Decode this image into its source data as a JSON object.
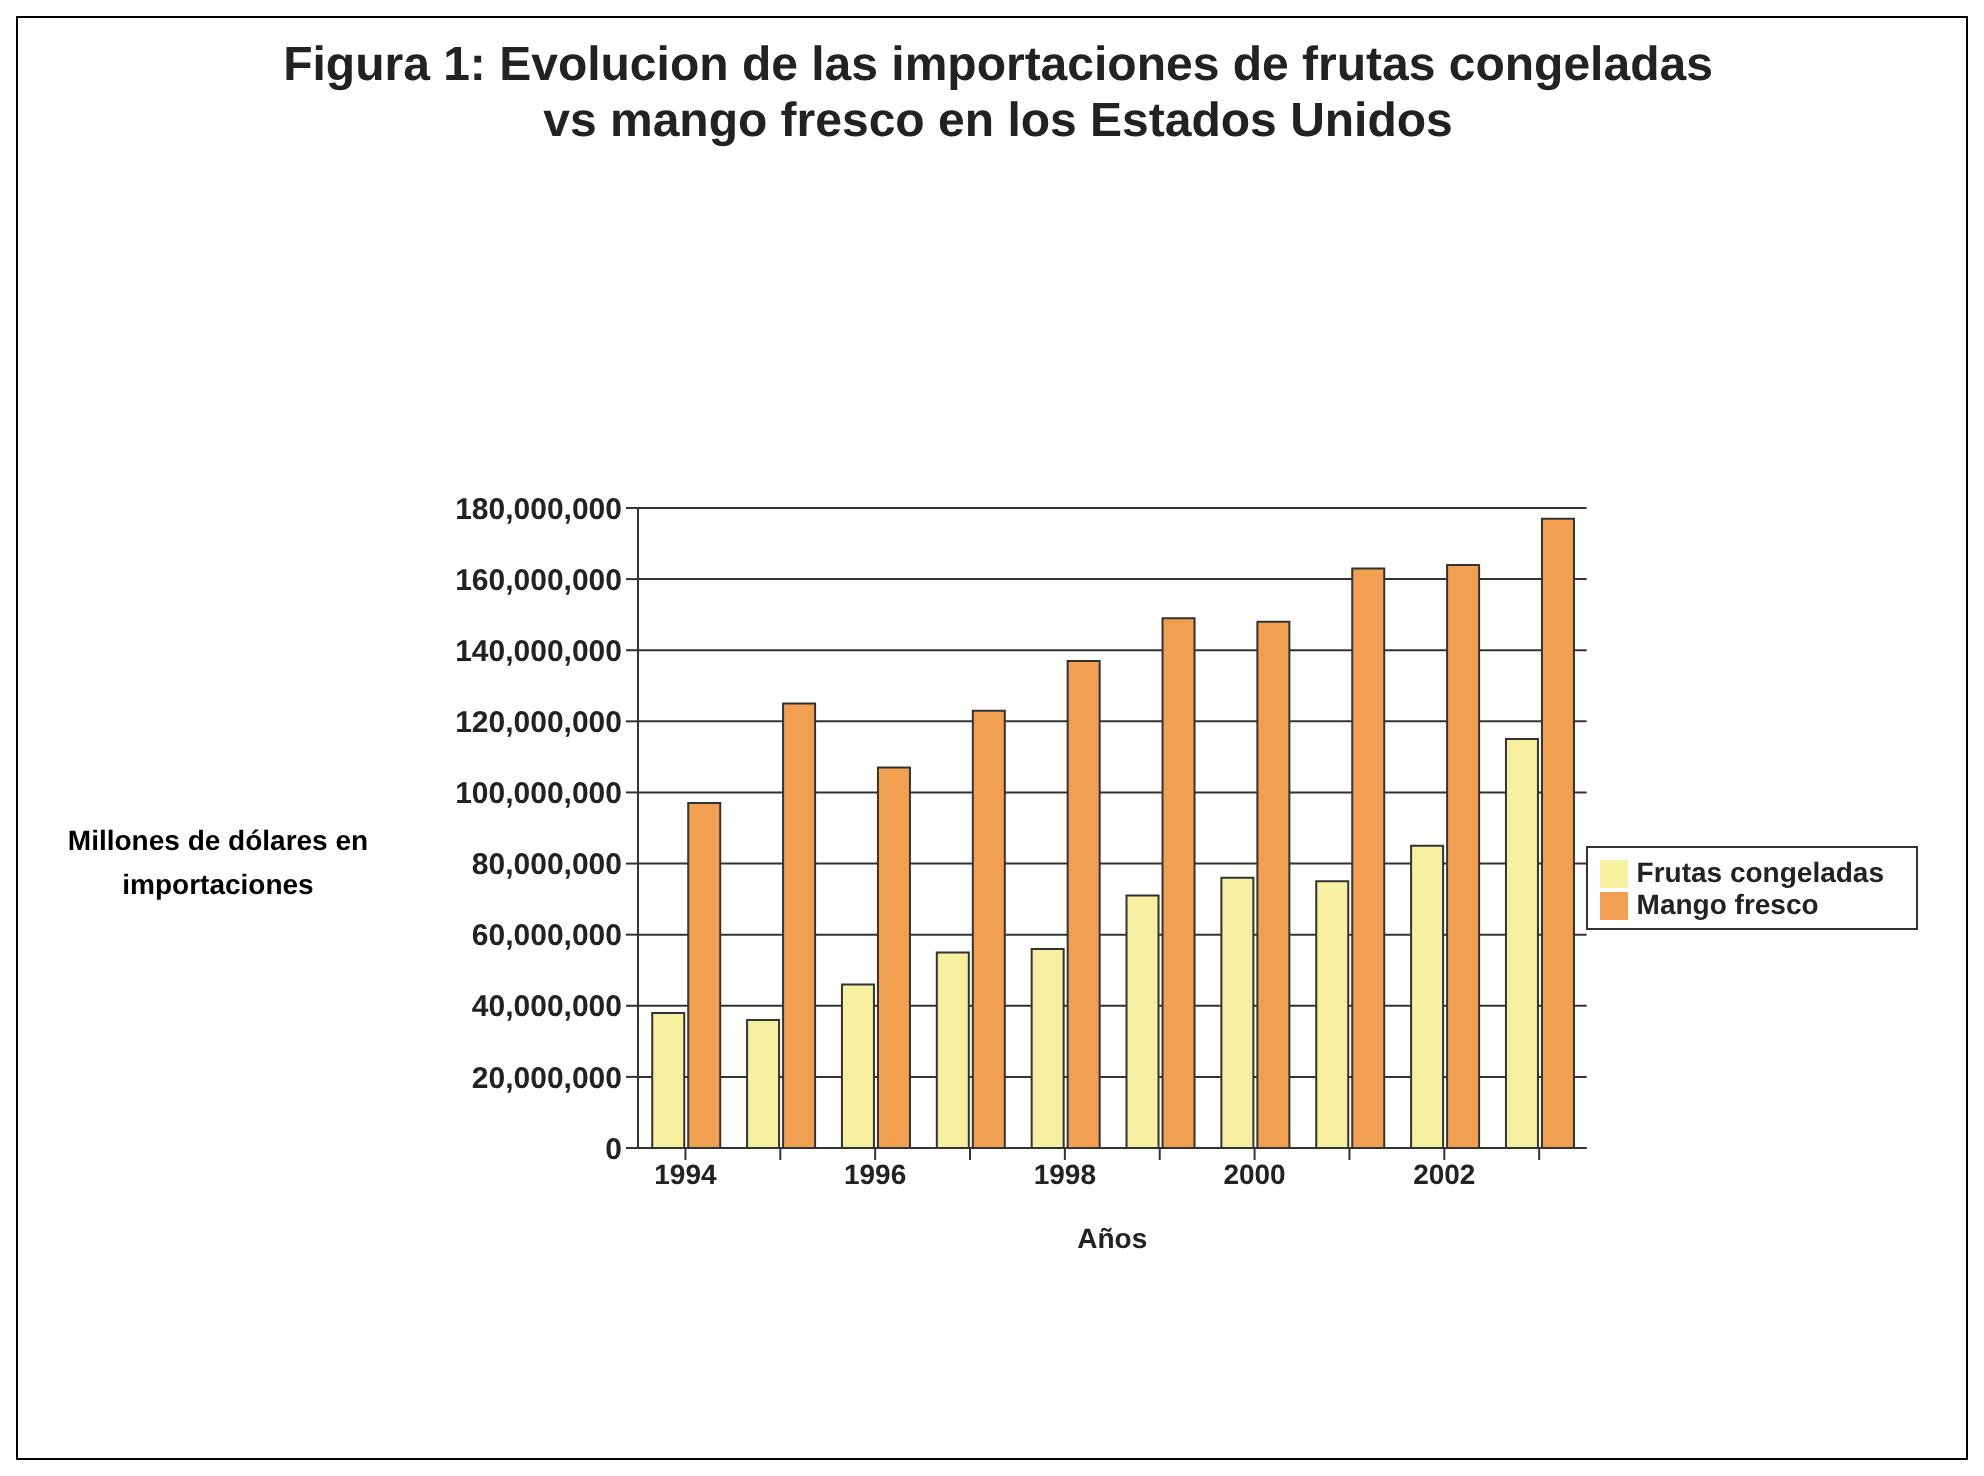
{
  "chart_data": {
    "type": "bar",
    "title": "Figura 1: Evolucion de las importaciones de frutas congeladas vs mango fresco en los Estados Unidos",
    "xlabel": "Años",
    "ylabel": "Millones de dólares en importaciones",
    "categories": [
      "1994",
      null,
      "1996",
      null,
      "1998",
      null,
      "2000",
      null,
      "2002",
      null
    ],
    "series": [
      {
        "name": "Frutas congeladas",
        "color": "#f7f0a0",
        "values": [
          38000000,
          36000000,
          46000000,
          55000000,
          56000000,
          71000000,
          76000000,
          75000000,
          85000000,
          115000000
        ]
      },
      {
        "name": "Mango fresco",
        "color": "#f0a050",
        "values": [
          97000000,
          125000000,
          107000000,
          123000000,
          137000000,
          149000000,
          148000000,
          163000000,
          164000000,
          177000000
        ]
      }
    ],
    "ylim": [
      0,
      180000000
    ],
    "yticks": [
      {
        "value": 0,
        "label": "0"
      },
      {
        "value": 20000000,
        "label": "20,000,000"
      },
      {
        "value": 40000000,
        "label": "40,000,000"
      },
      {
        "value": 60000000,
        "label": "60,000,000"
      },
      {
        "value": 80000000,
        "label": "80,000,000"
      },
      {
        "value": 100000000,
        "label": "100,000,000"
      },
      {
        "value": 120000000,
        "label": "120,000,000"
      },
      {
        "value": 140000000,
        "label": "140,000,000"
      },
      {
        "value": 160000000,
        "label": "160,000,000"
      },
      {
        "value": 180000000,
        "label": "180,000,000"
      }
    ],
    "grid": "y",
    "legend": "right"
  }
}
